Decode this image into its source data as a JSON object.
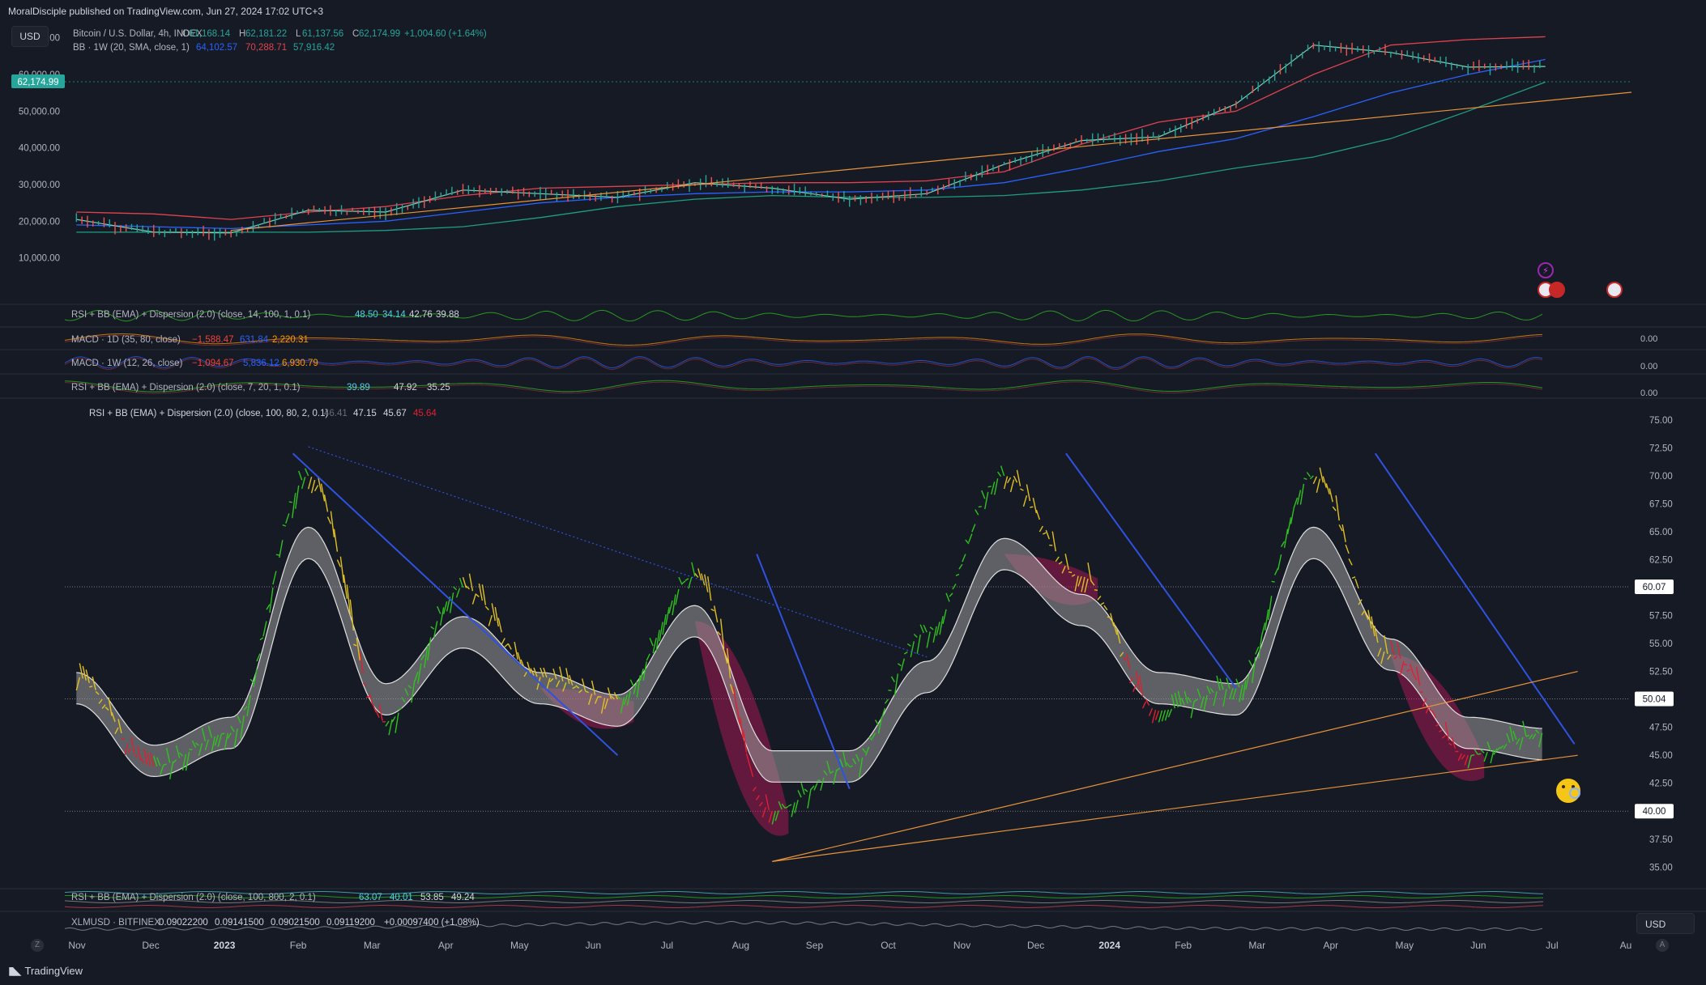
{
  "header": {
    "published": "MoralDisciple published on TradingView.com, Jun 27, 2024 17:02 UTC+3",
    "currency_top": "USD",
    "currency_bottom": "USD",
    "brand": "TradingView",
    "zoom_btn": "Z",
    "auto_btn": "A"
  },
  "main_pane": {
    "symbol": "Bitcoin / U.S. Dollar, 4h, INDEX",
    "ohlc": [
      {
        "k": "O",
        "v": "61,168.14"
      },
      {
        "k": "H",
        "v": "62,181.22"
      },
      {
        "k": "L",
        "v": "61,137.56"
      },
      {
        "k": "C",
        "v": "62,174.99"
      }
    ],
    "change": "+1,004.60 (+1.64%)",
    "bb_label": "BB · 1W (20, SMA, close, 1)",
    "bb_values": [
      "64,102.57",
      "70,288.71",
      "57,916.42"
    ],
    "last_price": "62,174.99",
    "y_ticks": [
      "70,000.00",
      "60,000.00",
      "50,000.00",
      "40,000.00",
      "30,000.00",
      "20,000.00",
      "10,000.00"
    ]
  },
  "indicators": [
    {
      "label": "RSI + BB (EMA) + Dispersion (2.0) (close, 14, 100, 1, 0.1)",
      "values": [
        "48.50",
        "34.14",
        "42.76",
        "39.88"
      ],
      "axis": ""
    },
    {
      "label": "MACD · 1D (35, 80, close)",
      "values": [
        "−1,588.47",
        "631.84",
        "2,220.31"
      ],
      "axis": "0.00"
    },
    {
      "label": "MACD · 1W (12, 26, close)",
      "values": [
        "−1,094.67",
        "5,836.12",
        "6,930.79"
      ],
      "axis": "0.00"
    },
    {
      "label": "RSI + BB (EMA) + Dispersion (2.0) (close, 7, 20, 1, 0.1)",
      "values": [
        "39.89",
        "47.92",
        "35.25"
      ],
      "axis": "0.00"
    }
  ],
  "rsi_pane": {
    "label": "RSI + BB (EMA) + Dispersion (2.0) (close, 100, 80, 2, 0.1)",
    "values": [
      "46.41",
      "47.15",
      "45.67",
      "45.64"
    ],
    "levels": [
      "60.07",
      "50.04",
      "40.00"
    ]
  },
  "lower_pane": {
    "label": "RSI + BB (EMA) + Dispersion (2.0) (close, 100, 800, 2, 0.1)",
    "values": [
      "63.07",
      "40.01",
      "53.85",
      "49.24"
    ]
  },
  "xlm_pane": {
    "symbol": "XLMUSD · BITFINEX",
    "values": [
      "0.09022200",
      "0.09141500",
      "0.09021500",
      "0.09119200"
    ],
    "change": "+0.00097400 (+1.08%)"
  },
  "time_axis": [
    "Nov",
    "Dec",
    "2023",
    "Feb",
    "Mar",
    "Apr",
    "May",
    "Jun",
    "Jul",
    "Aug",
    "Sep",
    "Oct",
    "Nov",
    "Dec",
    "2024",
    "Feb",
    "Mar",
    "Apr",
    "May",
    "Jun",
    "Jul",
    "Au"
  ],
  "colors": {
    "background": "#161a25",
    "text": "#b2b5be",
    "trendline_blue": "#2f52e0",
    "trendline_orange": "#e8943a",
    "bb_upper": "#e0434f",
    "bb_basis": "#2962ff",
    "bb_lower": "#1e9e82",
    "rsi_up": "#2fc21f",
    "rsi_down": "#e0202f",
    "rsi_mid": "#e0c020",
    "band_fill": "#9a9a9a",
    "divergence_fill": "#c2185b"
  },
  "chart_data": [
    {
      "type": "line",
      "title": "Bitcoin / U.S. Dollar, 4h, INDEX",
      "ylim": [
        0,
        75000
      ],
      "x": [
        "Nov 2022",
        "Dec 2022",
        "Jan 2023",
        "Feb 2023",
        "Mar 2023",
        "Apr 2023",
        "May 2023",
        "Jun 2023",
        "Jul 2023",
        "Aug 2023",
        "Sep 2023",
        "Oct 2023",
        "Nov 2023",
        "Dec 2023",
        "Jan 2024",
        "Feb 2024",
        "Mar 2024",
        "Apr 2024",
        "May 2024",
        "Jun 2024"
      ],
      "series": [
        {
          "name": "Price",
          "values": [
            20500,
            17000,
            16800,
            23000,
            22500,
            28500,
            27500,
            26500,
            30500,
            29000,
            26000,
            27500,
            35500,
            42000,
            43000,
            52000,
            68000,
            66000,
            62000,
            62175
          ]
        },
        {
          "name": "BB upper",
          "values": [
            22500,
            22000,
            20500,
            22500,
            24000,
            27000,
            29000,
            29500,
            30000,
            30500,
            30500,
            31000,
            33500,
            41000,
            47000,
            50000,
            60000,
            68000,
            69500,
            70289
          ]
        },
        {
          "name": "BB basis",
          "values": [
            19000,
            18500,
            18000,
            19000,
            20000,
            22500,
            25000,
            26500,
            27500,
            28000,
            28000,
            28500,
            30500,
            34500,
            39000,
            42500,
            48500,
            55000,
            60000,
            64103
          ]
        },
        {
          "name": "BB lower",
          "values": [
            17000,
            17000,
            17000,
            17000,
            17500,
            18500,
            21000,
            24000,
            26000,
            27000,
            26500,
            26500,
            27000,
            28500,
            31000,
            34500,
            37500,
            42500,
            50000,
            57916
          ]
        }
      ]
    },
    {
      "type": "line",
      "title": "RSI + BB (EMA) + Dispersion (2.0) (close, 100, 80, 2, 0.1)",
      "ylim": [
        33.5,
        76
      ],
      "x": [
        "Nov 2022",
        "Dec 2022",
        "Jan 2023",
        "Feb 2023",
        "Mar 2023",
        "Apr 2023",
        "May 2023",
        "Jun 2023",
        "Jul 2023",
        "Aug 2023",
        "Sep 2023",
        "Oct 2023",
        "Nov 2023",
        "Dec 2023",
        "Jan 2024",
        "Feb 2024",
        "Mar 2024",
        "Apr 2024",
        "May 2024",
        "Jun 2024"
      ],
      "series": [
        {
          "name": "RSI",
          "values": [
            52,
            44,
            47,
            70,
            48,
            60,
            52,
            50,
            61,
            40,
            44,
            56,
            70,
            61,
            49,
            51,
            70,
            54,
            45,
            47
          ]
        },
        {
          "name": "Basis",
          "values": [
            51,
            44.5,
            47,
            64,
            50,
            56,
            51,
            49,
            57,
            44,
            44,
            52,
            63,
            58,
            51,
            50,
            64,
            54,
            47,
            46
          ]
        }
      ],
      "levels": [
        60.07,
        50.04,
        40.0
      ]
    }
  ]
}
